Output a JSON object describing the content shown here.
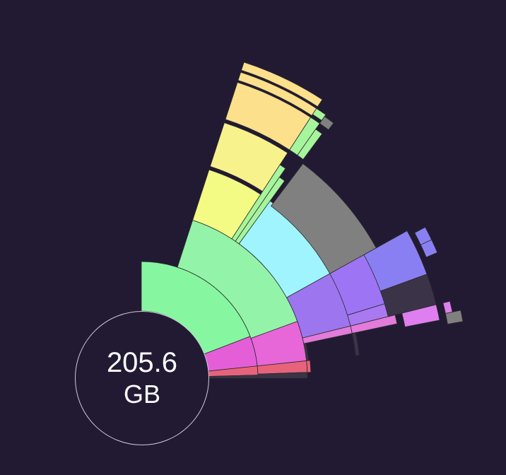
{
  "center": {
    "value": "205.6",
    "unit": "GB"
  },
  "colors": {
    "background": "#221a33",
    "segment_stroke": "#221a33",
    "inner_edge": "#2a2a2a"
  },
  "segments": [
    {
      "id": "green-inner",
      "depth": 0,
      "start": 21,
      "end": 90,
      "color": "#86f7a0"
    },
    {
      "id": "pink-inner",
      "depth": 0,
      "start": 6,
      "end": 21,
      "color": "#e45ed8"
    },
    {
      "id": "red-inner",
      "depth": 0,
      "start": 1.5,
      "end": 6,
      "color": "#e7637c"
    },
    {
      "id": "grey-inner",
      "depth": 0,
      "start": 0,
      "end": 1.5,
      "color": "#3b3448"
    },
    {
      "id": "green-mid",
      "depth": 1,
      "start": 20,
      "end": 72,
      "color": "#93f4a9"
    },
    {
      "id": "pink-mid",
      "depth": 1,
      "start": 6,
      "end": 20,
      "color": "#e766d8"
    },
    {
      "id": "red-mid",
      "depth": 1,
      "start": 2,
      "end": 6,
      "color": "#e7637c"
    },
    {
      "id": "grey-mid",
      "depth": 1,
      "start": 0,
      "end": 2,
      "color": "#3b3448"
    },
    {
      "id": "yellow-lime",
      "depth": 2,
      "start": 57,
      "end": 72,
      "color": "#f3fb85"
    },
    {
      "id": "cyan",
      "depth": 2,
      "start": 29,
      "end": 54,
      "color": "#9ff4fd"
    },
    {
      "id": "violet-a",
      "depth": 2,
      "start": 14,
      "end": 29,
      "color": "#9d75ef"
    },
    {
      "id": "pink-sliver",
      "depth": 2,
      "start": 12,
      "end": 14,
      "color": "#e27bd9"
    },
    {
      "id": "grey-sliver",
      "depth": 2,
      "start": 6,
      "end": 12,
      "color": "#3b3448"
    },
    {
      "id": "red-thin",
      "depth": 2,
      "start": 2,
      "end": 6,
      "color": "#e7637c"
    },
    {
      "id": "yellow-light",
      "depth": 3,
      "start": 57,
      "end": 72,
      "color": "#f8f28d"
    },
    {
      "id": "green-edge-1",
      "depth": 3,
      "start": 55.5,
      "end": 57,
      "color": "#a6f59c"
    },
    {
      "id": "green-edge-2",
      "depth": 3,
      "start": 54,
      "end": 55.5,
      "color": "#a6f59c"
    },
    {
      "id": "grey-block",
      "depth": 3,
      "start": 29,
      "end": 53,
      "color": "#808080"
    },
    {
      "id": "violet-b",
      "depth": 3,
      "start": 17,
      "end": 29,
      "color": "#9d75f4"
    },
    {
      "id": "violet-c",
      "depth": 3,
      "start": 14,
      "end": 17,
      "color": "#a879f1"
    },
    {
      "id": "pink-line",
      "depth": 3,
      "start": 12,
      "end": 14,
      "color": "#e27bd9"
    },
    {
      "id": "grey-slab",
      "depth": 3,
      "start": 6,
      "end": 12,
      "color": "#3b3448"
    },
    {
      "id": "yellow-top",
      "depth": 4,
      "start": 57,
      "end": 72,
      "color": "#fce08c"
    },
    {
      "id": "green-strip",
      "depth": 4,
      "start": 55,
      "end": 57,
      "color": "#a6f59c"
    },
    {
      "id": "green-strip-2",
      "depth": 4,
      "start": 53.5,
      "end": 55,
      "color": "#a6f59c"
    },
    {
      "id": "indigo",
      "depth": 4,
      "start": 20,
      "end": 29,
      "color": "#8a7ff2"
    },
    {
      "id": "grey-lower",
      "depth": 4,
      "start": 14,
      "end": 20,
      "color": "#3b3448"
    },
    {
      "id": "pink-outer",
      "depth": 4,
      "start": 11,
      "end": 14,
      "color": "#df7ef0"
    },
    {
      "id": "yellow-arc-1",
      "depth": 5,
      "start": 57,
      "end": 72,
      "color": "#fce08c"
    },
    {
      "id": "yellow-arc-2",
      "depth": 5,
      "start": 57,
      "end": 72,
      "color": "#fce08c"
    },
    {
      "id": "green-tip",
      "depth": 5,
      "start": 55,
      "end": 57,
      "color": "#a6f59c"
    },
    {
      "id": "grey-tip",
      "depth": 5,
      "start": 53,
      "end": 55,
      "color": "#808080"
    },
    {
      "id": "indigo-tip-1",
      "depth": 5,
      "start": 25.5,
      "end": 28,
      "color": "#8a7ff2"
    },
    {
      "id": "indigo-tip-2",
      "depth": 5,
      "start": 23,
      "end": 25.5,
      "color": "#8a7ff2"
    },
    {
      "id": "pink-tip",
      "depth": 5,
      "start": 12,
      "end": 14,
      "color": "#df7ef0"
    },
    {
      "id": "grey-tip-2",
      "depth": 5,
      "start": 10,
      "end": 12,
      "color": "#808080"
    }
  ]
}
